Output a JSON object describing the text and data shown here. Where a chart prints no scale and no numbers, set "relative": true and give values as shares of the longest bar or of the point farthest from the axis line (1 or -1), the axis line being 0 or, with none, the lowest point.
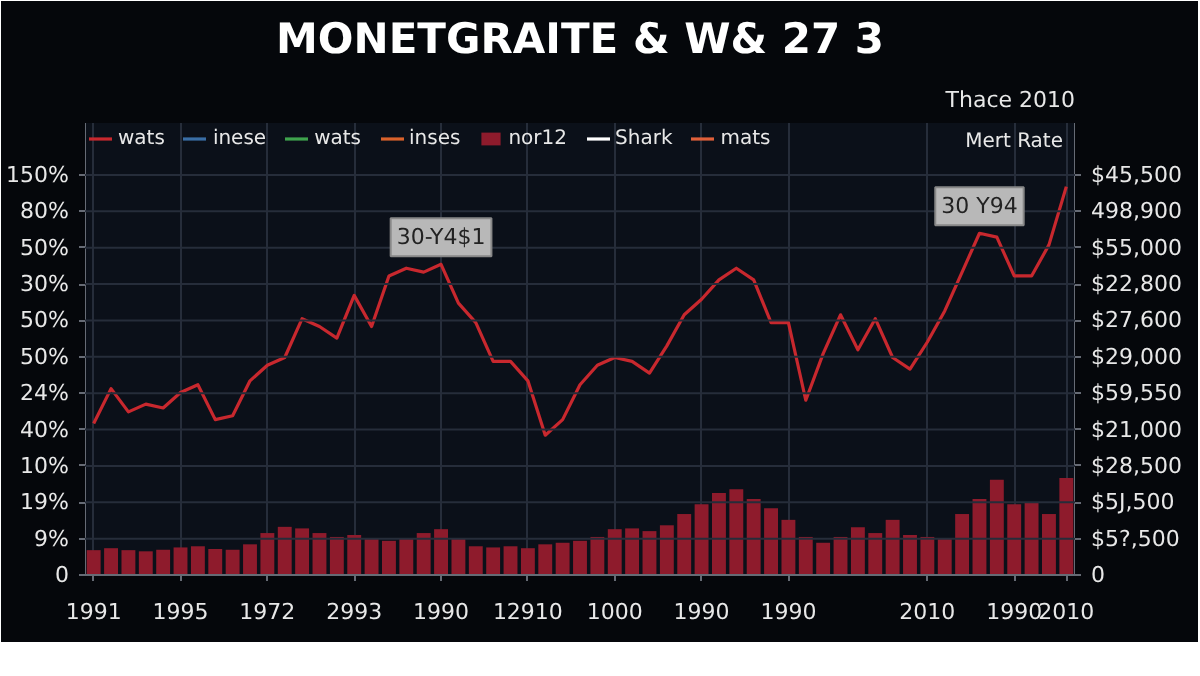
{
  "chart_data": {
    "type": "line",
    "title": "MONETGRAITE & W& 27 3",
    "y2label": "Thace 2010",
    "relative": true,
    "categories": [
      "1991",
      null,
      null,
      null,
      null,
      "1995",
      null,
      null,
      null,
      null,
      "1972",
      null,
      null,
      null,
      null,
      "2993",
      null,
      null,
      null,
      null,
      "1990",
      null,
      null,
      null,
      null,
      "12910",
      null,
      null,
      null,
      null,
      "1000",
      null,
      null,
      null,
      null,
      "1990",
      null,
      null,
      null,
      null,
      "1990",
      null,
      null,
      null,
      null,
      null,
      null,
      null,
      "2010",
      null,
      null,
      null,
      null,
      "1990",
      null,
      null,
      "2010"
    ],
    "grid": true,
    "legend": "top left",
    "series": [
      {
        "name": "wats",
        "color": "#c8282e",
        "values": [
          0.39,
          0.48,
          0.42,
          0.44,
          0.43,
          0.47,
          0.49,
          0.4,
          0.41,
          0.5,
          0.54,
          0.56,
          0.66,
          0.64,
          0.61,
          0.72,
          0.64,
          0.77,
          0.79,
          0.78,
          0.8,
          0.7,
          0.65,
          0.55,
          0.55,
          0.5,
          0.36,
          0.4,
          0.49,
          0.54,
          0.56,
          0.55,
          0.52,
          0.59,
          0.67,
          0.71,
          0.76,
          0.79,
          0.76,
          0.65,
          0.65,
          0.45,
          0.57,
          0.67,
          0.58,
          0.66,
          0.56,
          0.53,
          0.6,
          0.68,
          0.78,
          0.88,
          0.87,
          0.77,
          0.77,
          0.85,
          1.0
        ]
      },
      {
        "name": "inese",
        "color": "#3a6ea5",
        "values": [
          null,
          null,
          null,
          null,
          null,
          null,
          null,
          null,
          null,
          null,
          null,
          null,
          null,
          null,
          null,
          null,
          null,
          null,
          null,
          null,
          null,
          null,
          null,
          null,
          null,
          null,
          null,
          null,
          null,
          null,
          null,
          null,
          null,
          null,
          null,
          null,
          null,
          null,
          null,
          null,
          null,
          null,
          null,
          null,
          null,
          null,
          null,
          null,
          null,
          null,
          null,
          null,
          null,
          null,
          null,
          null,
          null
        ]
      },
      {
        "name": "wats",
        "color": "#3fa34d",
        "values": [
          null,
          null,
          null,
          null,
          null,
          null,
          null,
          null,
          null,
          null,
          null,
          null,
          null,
          null,
          null,
          null,
          null,
          null,
          null,
          null,
          null,
          null,
          null,
          null,
          null,
          null,
          null,
          null,
          null,
          null,
          null,
          null,
          null,
          null,
          null,
          null,
          null,
          null,
          null,
          null,
          null,
          null,
          null,
          null,
          null,
          null,
          null,
          null,
          null,
          null,
          null,
          null,
          null,
          null,
          null,
          null,
          null
        ]
      },
      {
        "name": "inses",
        "color": "#d9622b",
        "values": [
          null,
          null,
          null,
          null,
          null,
          null,
          null,
          null,
          null,
          null,
          null,
          null,
          null,
          null,
          null,
          null,
          null,
          null,
          null,
          null,
          null,
          null,
          null,
          null,
          null,
          null,
          null,
          null,
          null,
          null,
          null,
          null,
          null,
          null,
          null,
          null,
          null,
          null,
          null,
          null,
          null,
          null,
          null,
          null,
          null,
          null,
          null,
          null,
          null,
          null,
          null,
          null,
          null,
          null,
          null,
          null,
          null
        ]
      },
      {
        "name": "nor12",
        "color": "#8e1b2c",
        "type": "bar",
        "values": [
          0.064,
          0.069,
          0.064,
          0.061,
          0.065,
          0.071,
          0.074,
          0.067,
          0.065,
          0.079,
          0.108,
          0.124,
          0.12,
          0.108,
          0.098,
          0.103,
          0.093,
          0.088,
          0.093,
          0.108,
          0.118,
          0.093,
          0.074,
          0.071,
          0.074,
          0.069,
          0.079,
          0.083,
          0.088,
          0.098,
          0.118,
          0.12,
          0.113,
          0.128,
          0.157,
          0.182,
          0.211,
          0.221,
          0.196,
          0.172,
          0.142,
          0.098,
          0.083,
          0.098,
          0.123,
          0.108,
          0.142,
          0.103,
          0.098,
          0.093,
          0.157,
          0.196,
          0.245,
          0.182,
          0.186,
          0.157,
          0.25
        ]
      },
      {
        "name": "Shark",
        "color": "#ffffff",
        "values": [
          null,
          null,
          null,
          null,
          null,
          null,
          null,
          null,
          null,
          null,
          null,
          null,
          null,
          null,
          null,
          null,
          null,
          null,
          null,
          null,
          null,
          null,
          null,
          null,
          null,
          null,
          null,
          null,
          null,
          null,
          null,
          null,
          null,
          null,
          null,
          null,
          null,
          null,
          null,
          null,
          null,
          null,
          null,
          null,
          null,
          null,
          null,
          null,
          null,
          null,
          null,
          null,
          null,
          null,
          null,
          null,
          null
        ]
      },
      {
        "name": "mats",
        "color": "#e0603a",
        "values": [
          null,
          null,
          null,
          null,
          null,
          null,
          null,
          null,
          null,
          null,
          null,
          null,
          null,
          null,
          null,
          null,
          null,
          null,
          null,
          null,
          null,
          null,
          null,
          null,
          null,
          null,
          null,
          null,
          null,
          null,
          null,
          null,
          null,
          null,
          null,
          null,
          null,
          null,
          null,
          null,
          null,
          null,
          null,
          null,
          null,
          null,
          null,
          null,
          null,
          null,
          null,
          null,
          null,
          null,
          null,
          null,
          null
        ]
      }
    ],
    "annotations": [
      {
        "text": "30-Y4$1",
        "y": 0.8
      },
      {
        "text": "30 Y94",
        "y": 0.88
      },
      "Mert Rate",
      "150%",
      "80%",
      "50%",
      "30%",
      "50%",
      "50%",
      "24%",
      "40%",
      "10%",
      "19%",
      "9%",
      "0",
      "$45,500",
      "498,900",
      "$55,000",
      "$22,800",
      "$27,600",
      "$29,000",
      "$59,550",
      "$21,000",
      "$28,500",
      "$5J,500",
      "$5?,500",
      "0"
    ]
  }
}
